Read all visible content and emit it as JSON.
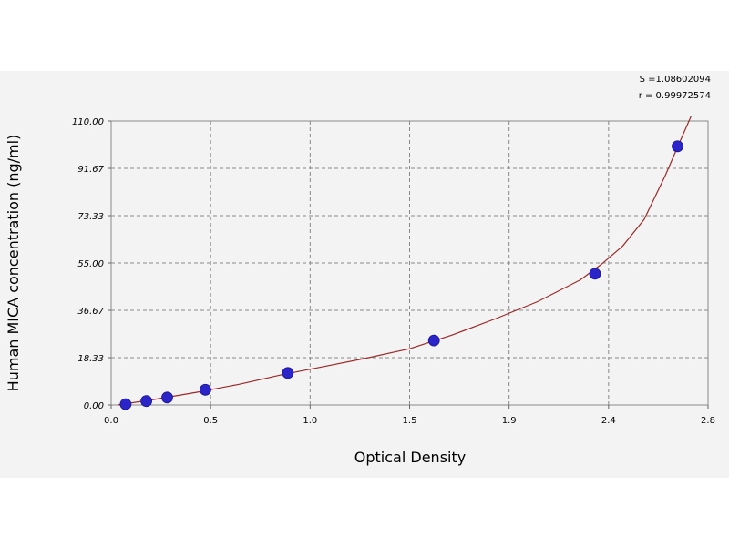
{
  "chart_data": {
    "type": "scatter",
    "xlabel": "Optical Density",
    "ylabel": "Human MICA concentration (ng/ml)",
    "xlim": [
      0.0,
      2.8
    ],
    "ylim": [
      0.0,
      110.0
    ],
    "x_ticks": [
      "0.0",
      "0.5",
      "1.0",
      "1.5",
      "1.9",
      "2.4",
      "2.8"
    ],
    "y_ticks": [
      "0.00",
      "18.33",
      "36.67",
      "55.00",
      "73.33",
      "91.67",
      "110.00"
    ],
    "grid": true,
    "annotations": [
      "S =1.08602094",
      "r = 0.99972574"
    ],
    "colors": {
      "points": "#2b24c7",
      "curve": "#9b2a2a",
      "background": "#f3f3f3",
      "grid": "#888888"
    },
    "series": [
      {
        "type": "scatter",
        "x": [
          0.068,
          0.165,
          0.263,
          0.442,
          0.829,
          1.514,
          2.27,
          2.657
        ],
        "y": [
          0.3,
          1.5,
          2.9,
          5.9,
          12.4,
          25.0,
          50.8,
          100.2
        ]
      }
    ],
    "fit_curve": {
      "x": [
        0.03,
        0.2,
        0.4,
        0.6,
        0.8,
        1.0,
        1.2,
        1.4,
        1.6,
        1.8,
        2.0,
        2.2,
        2.3,
        2.4,
        2.5,
        2.6,
        2.66,
        2.72
      ],
      "y": [
        0.0,
        2.1,
        4.9,
        8.0,
        11.7,
        14.9,
        18.2,
        21.8,
        27.1,
        33.3,
        40.0,
        48.4,
        54.5,
        61.6,
        71.8,
        89.0,
        100.5,
        111.8
      ]
    }
  }
}
